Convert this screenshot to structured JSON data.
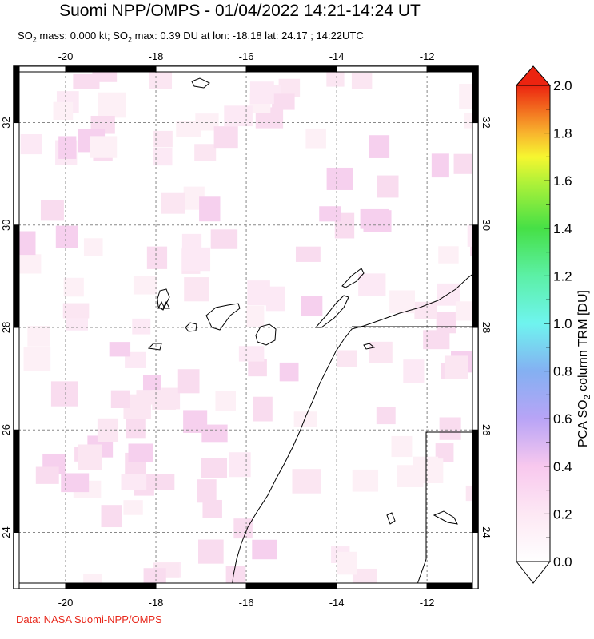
{
  "header": {
    "title": "Suomi NPP/OMPS - 01/04/2022 14:21-14:24 UT",
    "subtitle_parts": [
      "SO",
      "2",
      " mass: 0.000 kt; SO",
      "2",
      " max: 0.39 DU at lon: -18.18 lat: 24.17 ; 14:22UTC"
    ]
  },
  "map": {
    "lon_range": [
      -21.15,
      -10.87
    ],
    "lat_range": [
      22.9,
      33.1
    ],
    "lon_ticks": [
      -20,
      -18,
      -16,
      -14,
      -12
    ],
    "lat_ticks": [
      24,
      26,
      28,
      30,
      32
    ],
    "lon_tick_labels": [
      "-20",
      "-18",
      "-16",
      "-14",
      "-12"
    ],
    "lat_tick_labels": [
      "24",
      "26",
      "28",
      "30",
      "32"
    ],
    "grid_style": "dashed",
    "max_marker": {
      "lon": -18.18,
      "lat": 24.17,
      "value_du": 0.39
    }
  },
  "colorbar": {
    "label_main": "PCA SO",
    "label_sub": "2",
    "label_tail": " column TRM [DU]",
    "min": 0.0,
    "max": 2.0,
    "tick_labels": [
      "0.0",
      "0.2",
      "0.4",
      "0.6",
      "0.8",
      "1.0",
      "1.2",
      "1.4",
      "1.6",
      "1.8",
      "2.0"
    ],
    "colors": [
      "#ffffff",
      "#fde8f4",
      "#f8c8ee",
      "#b8a4f6",
      "#84b0f2",
      "#6ff4ef",
      "#5cf0a6",
      "#46e046",
      "#b4f238",
      "#f6f630",
      "#f8b42e",
      "#ec2410"
    ]
  },
  "footer": {
    "credit": "Data: NASA Suomi-NPP/OMPS"
  }
}
